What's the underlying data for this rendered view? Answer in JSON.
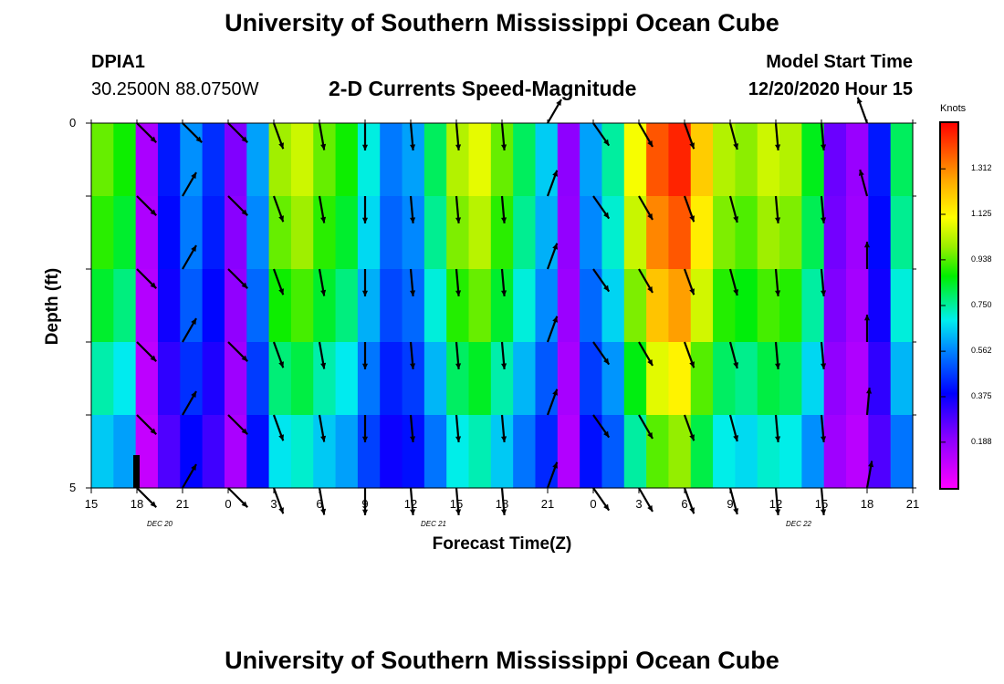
{
  "header": {
    "top_title": "University of Southern Mississippi Ocean Cube",
    "bottom_title": "University of Southern Mississippi Ocean Cube",
    "station_id": "DPIA1",
    "station_coords": "30.2500N 88.0750W",
    "plot_title": "2-D Currents Speed-Magnitude",
    "model_label": "Model Start Time",
    "model_time": "12/20/2020 Hour 15"
  },
  "chart_data": {
    "type": "heatmap",
    "title": "2-D Currents Speed-Magnitude",
    "xlabel": "Forecast Time(Z)",
    "ylabel": "Depth (ft)",
    "x_tick_labels": [
      "15",
      "18",
      "21",
      "0",
      "3",
      "6",
      "9",
      "12",
      "15",
      "18",
      "21",
      "0",
      "3",
      "6",
      "9",
      "12",
      "15",
      "18",
      "21"
    ],
    "date_labels": [
      "DEC 20",
      "DEC 21",
      "DEC 22"
    ],
    "y_tick_labels": [
      "0",
      "5"
    ],
    "ylim": [
      0,
      5
    ],
    "time_hours_range": [
      0,
      54
    ],
    "colorbar": {
      "unit": "Knots",
      "range": [
        0,
        1.5
      ],
      "ticks": [
        "1.312",
        "1.125",
        "0.938",
        "0.750",
        "0.562",
        "0.375",
        "0.188"
      ],
      "tick_values": [
        1.312,
        1.125,
        0.938,
        0.75,
        0.562,
        0.375,
        0.188
      ]
    },
    "depth_layers": 5,
    "time_columns": 37,
    "speed_profile_knots": [
      0.95,
      0.88,
      0.15,
      0.42,
      0.58,
      0.45,
      0.22,
      0.6,
      1.0,
      1.05,
      0.95,
      0.88,
      0.7,
      0.55,
      0.6,
      0.8,
      1.02,
      1.08,
      0.95,
      0.8,
      0.65,
      0.2,
      0.6,
      0.75,
      1.1,
      1.38,
      1.45,
      1.2,
      1.02,
      0.98,
      1.05,
      1.02,
      0.85,
      0.25,
      0.18,
      0.42,
      0.8
    ],
    "depth_factors": [
      1.0,
      0.95,
      0.88,
      0.78,
      0.68,
      0.56
    ],
    "arrow_times_hours": [
      3,
      6,
      9,
      12,
      15,
      18,
      21,
      24,
      27,
      30,
      33,
      36,
      39,
      42,
      45,
      48,
      51
    ],
    "arrow_depths_ft": [
      0,
      1,
      2,
      3,
      4,
      5
    ],
    "arrow_directions_deg": [
      [
        135,
        135,
        135,
        135,
        135,
        135
      ],
      [
        135,
        30,
        30,
        30,
        30,
        30
      ],
      [
        135,
        135,
        135,
        135,
        135,
        135
      ],
      [
        160,
        160,
        160,
        160,
        160,
        160
      ],
      [
        170,
        170,
        170,
        170,
        170,
        170
      ],
      [
        180,
        180,
        180,
        180,
        180,
        180
      ],
      [
        175,
        175,
        175,
        175,
        175,
        175
      ],
      [
        175,
        175,
        175,
        175,
        175,
        175
      ],
      [
        175,
        175,
        175,
        175,
        175,
        175
      ],
      [
        30,
        20,
        20,
        20,
        20,
        20
      ],
      [
        145,
        145,
        145,
        145,
        145,
        145
      ],
      [
        150,
        150,
        150,
        150,
        150,
        150
      ],
      [
        160,
        160,
        160,
        160,
        160,
        160
      ],
      [
        165,
        165,
        165,
        165,
        165,
        165
      ],
      [
        175,
        175,
        175,
        175,
        175,
        175
      ],
      [
        175,
        175,
        175,
        175,
        175,
        175
      ],
      [
        340,
        345,
        0,
        0,
        5,
        10
      ]
    ]
  }
}
